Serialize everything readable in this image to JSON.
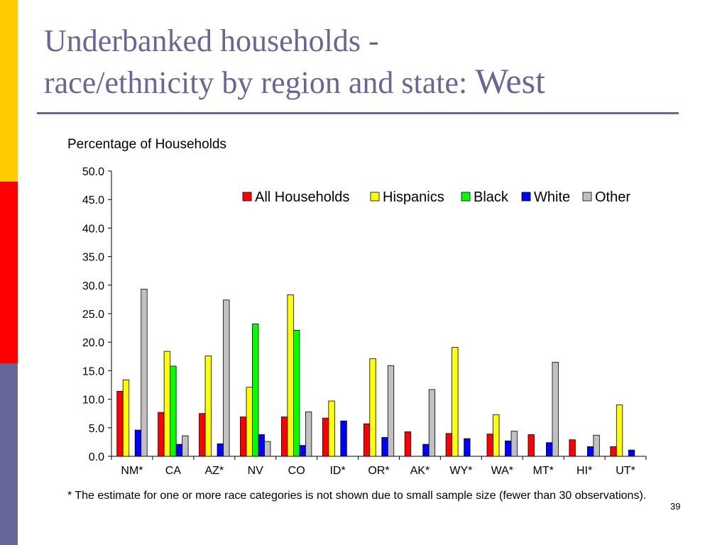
{
  "slide": {
    "title_line1": "Underbanked households -",
    "title_line2_prefix": "race/ethnicity by region and state: ",
    "title_line2_emph": "West",
    "footnote": "* The estimate for one or more race categories is not shown due to small sample size (fewer than 30 observations).",
    "page_number": "39",
    "accent_colors": [
      "#FFCC00",
      "#FF0000",
      "#666699"
    ]
  },
  "chart_data": {
    "type": "bar",
    "ylabel": "Percentage of Households",
    "ylim": [
      0,
      50
    ],
    "yticks": [
      "0.0",
      "5.0",
      "10.0",
      "15.0",
      "20.0",
      "25.0",
      "30.0",
      "35.0",
      "40.0",
      "45.0",
      "50.0"
    ],
    "legend_position": "top-right",
    "categories": [
      "NM*",
      "CA",
      "AZ*",
      "NV",
      "CO",
      "ID*",
      "OR*",
      "AK*",
      "WY*",
      "WA*",
      "MT*",
      "HI*",
      "UT*"
    ],
    "series": [
      {
        "name": "All Households",
        "color": "#FF0000",
        "values": [
          11.4,
          7.7,
          7.5,
          6.9,
          6.9,
          6.7,
          5.7,
          4.3,
          4.0,
          3.9,
          3.8,
          2.9,
          1.7
        ]
      },
      {
        "name": "Hispanics",
        "color": "#FFFF00",
        "values": [
          13.4,
          18.4,
          17.6,
          12.1,
          28.3,
          9.7,
          17.1,
          null,
          19.1,
          7.3,
          null,
          null,
          9.0
        ]
      },
      {
        "name": "Black",
        "color": "#00FF00",
        "values": [
          null,
          15.8,
          null,
          23.2,
          22.1,
          null,
          null,
          null,
          null,
          null,
          null,
          null,
          null
        ]
      },
      {
        "name": "White",
        "color": "#0000FF",
        "values": [
          4.6,
          2.1,
          2.2,
          3.8,
          1.9,
          6.2,
          3.3,
          2.1,
          3.1,
          2.7,
          2.4,
          1.7,
          1.1
        ]
      },
      {
        "name": "Other",
        "color": "#C0C0C0",
        "values": [
          29.3,
          3.6,
          27.4,
          2.6,
          7.8,
          null,
          15.9,
          11.7,
          null,
          4.4,
          16.5,
          3.7,
          null
        ]
      }
    ]
  }
}
